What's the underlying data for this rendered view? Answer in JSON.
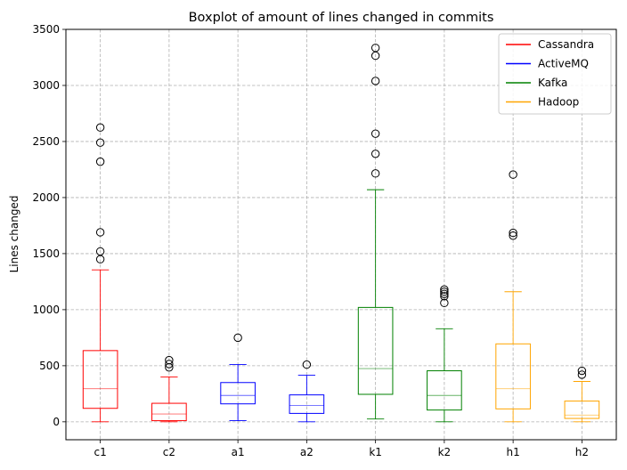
{
  "chart_data": {
    "type": "box",
    "title": "Boxplot of amount of lines changed in commits",
    "xlabel": "",
    "ylabel": "Lines changed",
    "ylim": [
      -160,
      3500
    ],
    "yticks": [
      0,
      500,
      1000,
      1500,
      2000,
      2500,
      3000,
      3500
    ],
    "grid": true,
    "legend_position": "top-right",
    "legend": [
      {
        "name": "Cassandra",
        "color": "#ff0000"
      },
      {
        "name": "ActiveMQ",
        "color": "#0000ff"
      },
      {
        "name": "Kafka",
        "color": "#008000"
      },
      {
        "name": "Hadoop",
        "color": "#ffa500"
      }
    ],
    "categories": [
      "c1",
      "c2",
      "a1",
      "a2",
      "k1",
      "k2",
      "h1",
      "h2"
    ],
    "boxes": [
      {
        "label": "c1",
        "color": "#ff0000",
        "whisker_low": 0,
        "q1": 120,
        "median": 295,
        "q3": 635,
        "whisker_high": 1355,
        "outliers": [
          1450,
          1520,
          1690,
          2320,
          2490,
          2625
        ]
      },
      {
        "label": "c2",
        "color": "#ff0000",
        "whisker_low": 0,
        "q1": 10,
        "median": 70,
        "q3": 165,
        "whisker_high": 400,
        "outliers": [
          485,
          515,
          550
        ]
      },
      {
        "label": "a1",
        "color": "#0000ff",
        "whisker_low": 10,
        "q1": 160,
        "median": 235,
        "q3": 350,
        "whisker_high": 510,
        "outliers": [
          750
        ]
      },
      {
        "label": "a2",
        "color": "#0000ff",
        "whisker_low": 0,
        "q1": 75,
        "median": 145,
        "q3": 240,
        "whisker_high": 415,
        "outliers": [
          510
        ]
      },
      {
        "label": "k1",
        "color": "#008000",
        "whisker_low": 25,
        "q1": 245,
        "median": 475,
        "q3": 1020,
        "whisker_high": 2070,
        "outliers": [
          2215,
          2390,
          2570,
          3040,
          3265,
          3335
        ]
      },
      {
        "label": "k2",
        "color": "#008000",
        "whisker_low": 0,
        "q1": 105,
        "median": 235,
        "q3": 455,
        "whisker_high": 830,
        "outliers": [
          1060,
          1120,
          1140,
          1160,
          1180
        ]
      },
      {
        "label": "h1",
        "color": "#ffa500",
        "whisker_low": 0,
        "q1": 115,
        "median": 295,
        "q3": 695,
        "whisker_high": 1160,
        "outliers": [
          1660,
          1685,
          2205
        ]
      },
      {
        "label": "h2",
        "color": "#ffa500",
        "whisker_low": 0,
        "q1": 30,
        "median": 60,
        "q3": 185,
        "whisker_high": 360,
        "outliers": [
          420,
          455
        ]
      }
    ]
  }
}
